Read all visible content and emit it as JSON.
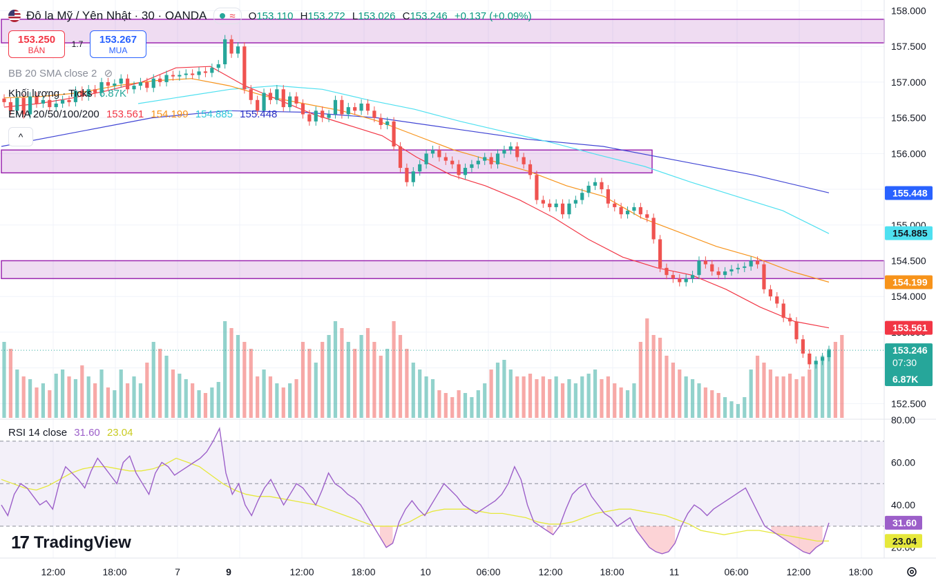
{
  "header": {
    "symbol_title": "Đô la Mỹ / Yên Nhật · 30 · OANDA",
    "open_label": "O",
    "open": "153.110",
    "high_label": "H",
    "high": "153.272",
    "low_label": "L",
    "low": "153.026",
    "close_label": "C",
    "close": "153.246",
    "change": "+0.137 (+0.09%)"
  },
  "trade": {
    "sell_price": "153.250",
    "sell_label": "BÁN",
    "spread": "1.7",
    "buy_price": "153.267",
    "buy_label": "MUA"
  },
  "indicators": {
    "bb_label": "BB 20 SMA close 2",
    "volume_label": "Khối lượng · Ticks",
    "volume_value": "6.87K",
    "ema_label": "EMA 20/50/100/200",
    "ema20": "153.561",
    "ema50": "154.199",
    "ema100": "154.885",
    "ema200": "155.448",
    "rsi_label": "RSI 14 close",
    "rsi_value": "31.60",
    "rsi_ma": "23.04"
  },
  "branding": {
    "logo_text": "TradingView"
  },
  "colors": {
    "up": "#26a69a",
    "down": "#ef5350",
    "ema20": "#f23645",
    "ema50": "#f7931a",
    "ema100": "#4ee0f0",
    "ema200": "#3f44d4",
    "zone": "#9c27b0",
    "rsi": "#9c5fc9",
    "rsi_ma": "#e6e83b"
  },
  "chart_data": {
    "type": "candlestick",
    "price_axis": {
      "range": [
        152.3,
        158.15
      ],
      "ticks": [
        "158.000",
        "157.500",
        "157.000",
        "156.500",
        "156.000",
        "155.500",
        "155.000",
        "154.500",
        "154.000",
        "153.500",
        "153.000",
        "152.500"
      ]
    },
    "time_axis": {
      "ticks": [
        "12:00",
        "18:00",
        "7",
        "9",
        "12:00",
        "18:00",
        "10",
        "06:00",
        "12:00",
        "18:00",
        "11",
        "06:00",
        "12:00",
        "18:00"
      ]
    },
    "price_badges": [
      {
        "label": "155.448",
        "value": 155.448,
        "color": "#2962ff"
      },
      {
        "label": "154.885",
        "value": 154.885,
        "color": "#4ee0f0"
      },
      {
        "label": "154.199",
        "value": 154.199,
        "color": "#f7931a"
      },
      {
        "label": "153.561",
        "value": 153.561,
        "color": "#f23645"
      },
      {
        "label": "153.246",
        "value": 153.246,
        "color": "#26a69a"
      }
    ],
    "countdown": "07:30",
    "volume_badge": "6.87K",
    "zones": [
      {
        "from": 157.55,
        "to": 157.88
      },
      {
        "from": 155.73,
        "to": 156.05
      },
      {
        "from": 154.25,
        "to": 154.5
      }
    ],
    "rsi_axis": {
      "range": [
        15,
        80
      ],
      "ticks": [
        "80.00",
        "60.00",
        "40.00",
        "20.00"
      ],
      "levels": [
        70,
        50,
        30
      ]
    },
    "close_series": [
      156.72,
      156.6,
      156.78,
      156.55,
      156.8,
      156.7,
      156.75,
      156.65,
      156.7,
      156.75,
      156.72,
      156.88,
      156.8,
      156.9,
      156.85,
      157.0,
      156.95,
      156.98,
      157.05,
      156.9,
      156.95,
      157.0,
      156.92,
      157.05,
      157.0,
      157.1,
      157.08,
      157.1,
      157.12,
      157.1,
      157.15,
      157.13,
      157.2,
      157.25,
      157.6,
      157.4,
      157.5,
      156.9,
      156.75,
      156.6,
      156.85,
      156.75,
      156.9,
      156.65,
      156.8,
      156.7,
      156.55,
      156.45,
      156.6,
      156.5,
      156.55,
      156.75,
      156.55,
      156.65,
      156.6,
      156.7,
      156.6,
      156.5,
      156.4,
      156.45,
      156.1,
      155.8,
      155.6,
      155.75,
      155.85,
      156.0,
      156.05,
      155.95,
      155.9,
      155.85,
      155.7,
      155.8,
      155.85,
      155.9,
      155.95,
      155.85,
      156.0,
      156.05,
      156.1,
      155.95,
      155.85,
      155.7,
      155.35,
      155.3,
      155.25,
      155.3,
      155.15,
      155.3,
      155.35,
      155.45,
      155.55,
      155.6,
      155.5,
      155.3,
      155.25,
      155.15,
      155.2,
      155.25,
      155.15,
      155.1,
      154.8,
      154.4,
      154.3,
      154.25,
      154.2,
      154.25,
      154.3,
      154.5,
      154.45,
      154.35,
      154.3,
      154.35,
      154.38,
      154.4,
      154.42,
      154.5,
      154.45,
      154.1,
      154.0,
      153.9,
      153.7,
      153.65,
      153.4,
      153.2,
      153.05,
      153.1,
      153.15,
      153.25
    ],
    "ema20_series": [
      156.65,
      156.7,
      156.78,
      156.88,
      157.0,
      157.2,
      157.22,
      156.95,
      156.75,
      156.55,
      156.4,
      156.25,
      155.95,
      155.7,
      155.55,
      155.35,
      155.1,
      154.8,
      154.55,
      154.4,
      154.3,
      154.1,
      153.85,
      153.65,
      153.56
    ],
    "ema50_series": [
      156.78,
      156.8,
      156.85,
      156.95,
      157.02,
      157.05,
      156.95,
      156.8,
      156.7,
      156.6,
      156.45,
      156.25,
      156.05,
      155.9,
      155.75,
      155.55,
      155.4,
      155.1,
      154.9,
      154.7,
      154.55,
      154.35,
      154.2
    ],
    "ema100_series": [
      156.7,
      156.8,
      156.9,
      156.95,
      156.9,
      156.75,
      156.62,
      156.45,
      156.3,
      156.15,
      155.98,
      155.82,
      155.6,
      155.4,
      155.2,
      154.88
    ],
    "ema200_series": [
      156.1,
      156.3,
      156.5,
      156.6,
      156.58,
      156.5,
      156.35,
      156.2,
      156.1,
      155.9,
      155.7,
      155.45
    ],
    "volume_series": [
      55,
      50,
      35,
      30,
      28,
      22,
      25,
      20,
      32,
      35,
      30,
      28,
      38,
      30,
      25,
      35,
      22,
      20,
      35,
      25,
      30,
      25,
      40,
      55,
      50,
      45,
      35,
      32,
      28,
      25,
      20,
      18,
      22,
      26,
      70,
      65,
      60,
      55,
      50,
      30,
      35,
      30,
      25,
      22,
      25,
      28,
      55,
      50,
      40,
      55,
      60,
      70,
      65,
      55,
      50,
      60,
      65,
      55,
      45,
      50,
      70,
      60,
      50,
      40,
      35,
      30,
      28,
      20,
      18,
      15,
      20,
      18,
      15,
      20,
      25,
      35,
      40,
      42,
      35,
      30,
      30,
      32,
      28,
      30,
      28,
      30,
      25,
      28,
      25,
      30,
      32,
      35,
      28,
      30,
      25,
      22,
      20,
      25,
      55,
      72,
      60,
      58,
      45,
      40,
      35,
      30,
      28,
      25,
      22,
      20,
      18,
      15,
      12,
      10,
      15,
      35,
      45,
      40,
      35,
      30,
      30,
      32,
      28,
      30,
      35,
      40,
      45,
      50,
      55,
      60
    ],
    "rsi_series": [
      40,
      35,
      45,
      50,
      48,
      44,
      40,
      42,
      38,
      50,
      58,
      55,
      52,
      48,
      56,
      62,
      58,
      54,
      50,
      60,
      63,
      55,
      50,
      45,
      55,
      60,
      58,
      54,
      56,
      58,
      60,
      62,
      65,
      70,
      76,
      55,
      45,
      50,
      40,
      35,
      42,
      48,
      52,
      46,
      40,
      45,
      50,
      48,
      44,
      40,
      47,
      55,
      50,
      48,
      45,
      43,
      40,
      35,
      30,
      25,
      20,
      22,
      32,
      38,
      42,
      38,
      35,
      40,
      45,
      50,
      47,
      44,
      40,
      38,
      36,
      38,
      40,
      42,
      45,
      50,
      58,
      52,
      40,
      32,
      30,
      28,
      26,
      30,
      38,
      45,
      48,
      50,
      44,
      40,
      36,
      34,
      30,
      32,
      34,
      28,
      24,
      20,
      18,
      17,
      18,
      22,
      30,
      36,
      40,
      38,
      35,
      38,
      40,
      42,
      44,
      46,
      48,
      42,
      36,
      30,
      28,
      26,
      24,
      22,
      20,
      18,
      17,
      20,
      22,
      31.6
    ],
    "rsi_ma_series": [
      52,
      50,
      48,
      47,
      49,
      52,
      55,
      57,
      58,
      58,
      57,
      56,
      56,
      57,
      59,
      62,
      60,
      58,
      54,
      50,
      47,
      45,
      44,
      44,
      43,
      42,
      41,
      40,
      38,
      36,
      34,
      32,
      30,
      30,
      30,
      32,
      35,
      37,
      38,
      38,
      38,
      37,
      36,
      36,
      35,
      34,
      32,
      31,
      31,
      32,
      34,
      36,
      37,
      38,
      38,
      37,
      36,
      35,
      33,
      31,
      28,
      27,
      26,
      27,
      28,
      28,
      27,
      26,
      25,
      24,
      23,
      23.04
    ]
  }
}
